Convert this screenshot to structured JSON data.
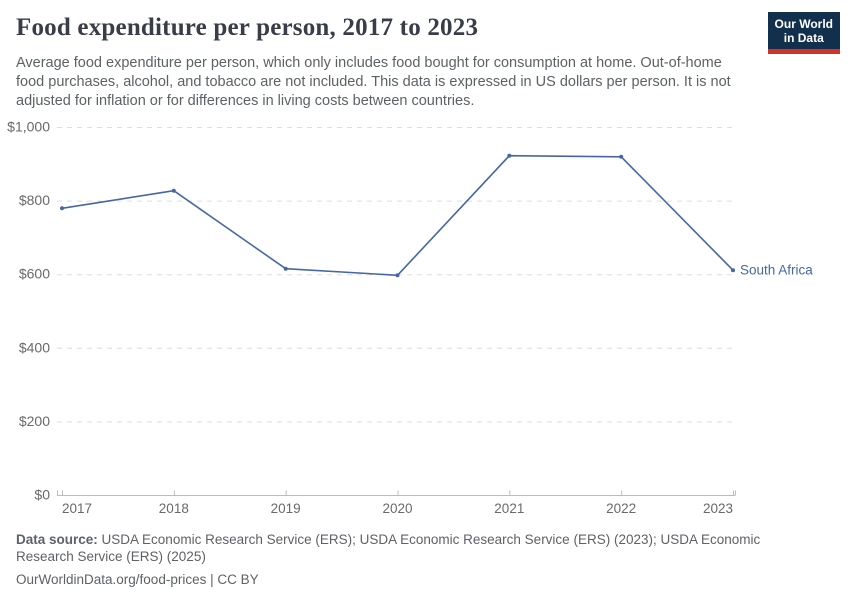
{
  "header": {
    "title": "Food expenditure per person, 2017 to 2023",
    "subtitle": "Average food expenditure per person, which only includes food bought for consumption at home. Out-of-home food purchases, alcohol, and tobacco are not included. This data is expressed in US dollars per person. It is not adjusted for inflation or for differences in living costs between countries.",
    "logo": {
      "line1": "Our World",
      "line2": "in Data",
      "bg_color": "#12304e",
      "accent_color": "#d13328"
    }
  },
  "chart_data": {
    "type": "line",
    "title": "Food expenditure per person, 2017 to 2023",
    "x": [
      "2017",
      "2018",
      "2019",
      "2020",
      "2021",
      "2022",
      "2023"
    ],
    "series": [
      {
        "name": "South Africa",
        "values": [
          779,
          827,
          615,
          597,
          922,
          919,
          611
        ],
        "color": "#4666a5"
      }
    ],
    "xlabel": "",
    "ylabel": "",
    "ylim": [
      0,
      1000
    ],
    "y_ticks": [
      {
        "value": 0,
        "label": "$0"
      },
      {
        "value": 200,
        "label": "$200"
      },
      {
        "value": 400,
        "label": "$400"
      },
      {
        "value": 600,
        "label": "$600"
      },
      {
        "value": 800,
        "label": "$800"
      },
      {
        "value": 1000,
        "label": "$1,000"
      }
    ],
    "grid": "horizontal-dashed",
    "legend": "line-end-label"
  },
  "footer": {
    "datasource_label": "Data source:",
    "datasource_text": " USDA Economic Research Service (ERS); USDA Economic Research Service (ERS) (2023); USDA Economic Research Service (ERS) (2025)",
    "url": "OurWorldinData.org/food-prices",
    "separator": " | ",
    "license": "CC BY"
  },
  "colors": {
    "line": "#4666a5",
    "title_text": "#383e48",
    "body_text": "#5b6266",
    "axis_text": "#67696b",
    "gridline": "#dedede",
    "axis_line": "#bcbcbc",
    "logo_bg": "#12304e",
    "logo_accent": "#d13328"
  }
}
